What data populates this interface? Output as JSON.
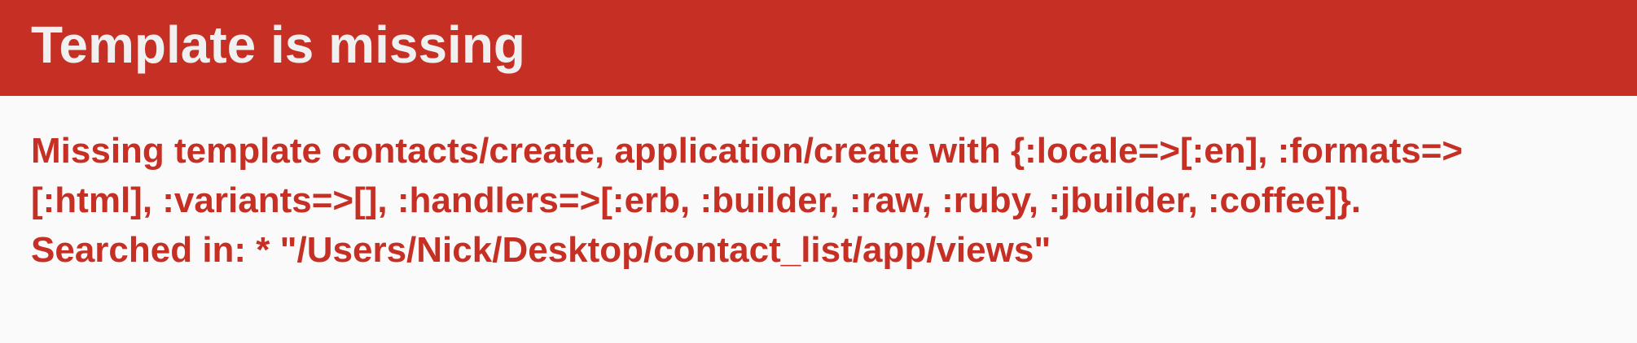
{
  "header": {
    "title": "Template is missing"
  },
  "error": {
    "lines": [
      "Missing template contacts/create, application/create with {:locale=>[:en], :formats=>",
      "[:html], :variants=>[], :handlers=>[:erb, :builder, :raw, :ruby, :jbuilder, :coffee]}.",
      "Searched in: * \"/Users/Nick/Desktop/contact_list/app/views\""
    ]
  },
  "colors": {
    "header_background": "#c52f24",
    "header_text": "#f0f0f0",
    "page_background": "#fafafa",
    "message_text": "#c52f24"
  }
}
